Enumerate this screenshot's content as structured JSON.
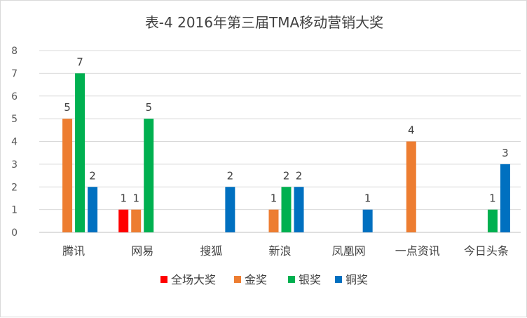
{
  "chart_data": {
    "type": "bar",
    "title": "表-4 2016年第三届TMA移动营销大奖",
    "categories": [
      "腾讯",
      "网易",
      "搜狐",
      "新浪",
      "凤凰网",
      "一点资讯",
      "今日头条"
    ],
    "series": [
      {
        "name": "全场大奖",
        "color": "#ff0000",
        "values": [
          null,
          1,
          null,
          null,
          null,
          null,
          null
        ]
      },
      {
        "name": "金奖",
        "color": "#ed7d31",
        "values": [
          5,
          1,
          null,
          1,
          null,
          4,
          null
        ]
      },
      {
        "name": "银奖",
        "color": "#00b050",
        "values": [
          7,
          5,
          null,
          2,
          null,
          null,
          1
        ]
      },
      {
        "name": "铜奖",
        "color": "#0070c0",
        "values": [
          2,
          null,
          2,
          2,
          1,
          null,
          3
        ]
      }
    ],
    "ylim": [
      0,
      8
    ],
    "yticks": [
      0,
      1,
      2,
      3,
      4,
      5,
      6,
      7,
      8
    ],
    "grid": true,
    "legend": "bottom",
    "data_labels": true
  }
}
